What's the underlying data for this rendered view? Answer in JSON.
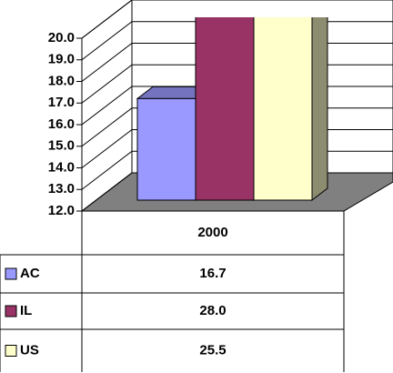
{
  "chart_data": {
    "type": "bar3d",
    "categories": [
      "2000"
    ],
    "series": [
      {
        "name": "AC",
        "color": "#9999ff",
        "values": [
          16.7
        ],
        "value_labels": [
          "16.7"
        ]
      },
      {
        "name": "IL",
        "color": "#993366",
        "values": [
          28
        ],
        "value_labels": [
          "28.0"
        ]
      },
      {
        "name": "US",
        "color": "#ffffcc",
        "values": [
          25.5
        ],
        "value_labels": [
          "25.5"
        ]
      }
    ],
    "ylim": [
      12,
      20
    ],
    "yticks": [
      {
        "value": 12,
        "label": "12.0"
      },
      {
        "value": 13,
        "label": "13.0"
      },
      {
        "value": 14,
        "label": "14.0"
      },
      {
        "value": 15,
        "label": "15.0"
      },
      {
        "value": 16,
        "label": "16.0"
      },
      {
        "value": 17,
        "label": "17.0"
      },
      {
        "value": 18,
        "label": "18.0"
      },
      {
        "value": 19,
        "label": "19.0"
      },
      {
        "value": 20,
        "label": "20.0"
      }
    ],
    "grid": true
  }
}
